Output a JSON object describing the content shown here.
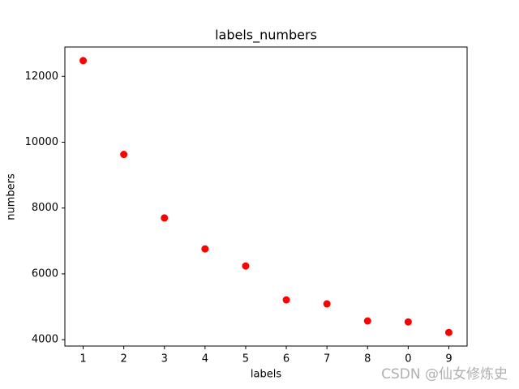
{
  "chart_data": {
    "type": "scatter",
    "title": "labels_numbers",
    "x_label": "labels",
    "y_label": "numbers",
    "categories": [
      "1",
      "2",
      "3",
      "4",
      "5",
      "6",
      "7",
      "8",
      "0",
      "9"
    ],
    "values": [
      12480,
      9630,
      7700,
      6760,
      6240,
      5210,
      5090,
      4570,
      4540,
      4220
    ],
    "color": "red",
    "ylim": [
      3807,
      12893
    ],
    "yticks": [
      4000,
      6000,
      8000,
      10000,
      12000
    ],
    "grid": false
  },
  "watermark": "CSDN @仙女修炼史"
}
